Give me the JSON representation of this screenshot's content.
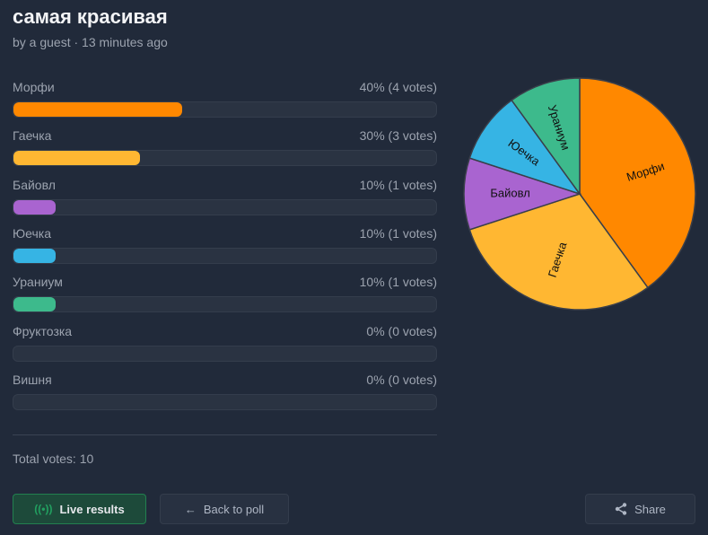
{
  "title": "самая красивая",
  "subtitle": "by a guest · 13 minutes ago",
  "options": [
    {
      "label": "Морфи",
      "result": "40% (4 votes)",
      "percent": 40,
      "color": "#ff8800"
    },
    {
      "label": "Гаечка",
      "result": "30% (3 votes)",
      "percent": 30,
      "color": "#ffb732"
    },
    {
      "label": "Байовл",
      "result": "10% (1 votes)",
      "percent": 10,
      "color": "#a964d0"
    },
    {
      "label": "Юечка",
      "result": "10% (1 votes)",
      "percent": 10,
      "color": "#36b4e4"
    },
    {
      "label": "Ураниум",
      "result": "10% (1 votes)",
      "percent": 10,
      "color": "#3dba8c"
    },
    {
      "label": "Фруктозка",
      "result": "0% (0 votes)",
      "percent": 0,
      "color": "#888888"
    },
    {
      "label": "Вишня",
      "result": "0% (0 votes)",
      "percent": 0,
      "color": "#888888"
    }
  ],
  "total": "Total votes: 10",
  "buttons": {
    "live": "Live results",
    "back": "Back to poll",
    "share": "Share"
  }
}
